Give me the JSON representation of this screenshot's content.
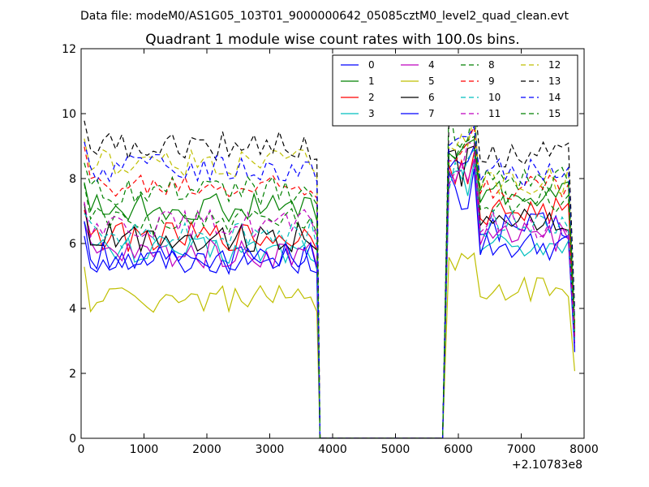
{
  "chart_data": {
    "type": "line",
    "suptitle": "Data file: modeM0/AS1G05_103T01_9000000642_05085cztM0_level2_quad_clean.evt",
    "title": "Quadrant 1 module wise count rates with 100.0s bins.",
    "xlabel": "",
    "ylabel": "",
    "xlim": [
      0,
      8000
    ],
    "ylim": [
      0,
      12
    ],
    "x_offset_label": "+2.10783e8",
    "x_ticks": [
      0,
      1000,
      2000,
      3000,
      4000,
      5000,
      6000,
      7000,
      8000
    ],
    "x_tick_labels": [
      "0",
      "1000",
      "2000",
      "3000",
      "4000",
      "5000",
      "6000",
      "7000",
      "8000"
    ],
    "y_ticks": [
      0,
      2,
      4,
      6,
      8,
      10,
      12
    ],
    "y_tick_labels": [
      "0",
      "2",
      "4",
      "6",
      "8",
      "10",
      "12"
    ],
    "legend_position": "top-right",
    "legend_columns": 4,
    "x_segments": [
      {
        "start": 50,
        "step": 100,
        "count": 38
      },
      {
        "points": [
          3800,
          5750
        ]
      },
      {
        "start": 5850,
        "step": 100,
        "count": 21
      }
    ],
    "series": [
      {
        "name": "0",
        "color": "#0000ff",
        "dash": "solid",
        "level_a": 5.5,
        "level_b": 6.5,
        "peak": 9.0
      },
      {
        "name": "1",
        "color": "#008000",
        "dash": "solid",
        "level_a": 7.1,
        "level_b": 7.5,
        "peak": 9.2
      },
      {
        "name": "2",
        "color": "#ff0000",
        "dash": "solid",
        "level_a": 6.2,
        "level_b": 7.0,
        "peak": 8.8
      },
      {
        "name": "3",
        "color": "#00bfbf",
        "dash": "solid",
        "level_a": 5.8,
        "level_b": 6.0,
        "peak": 8.5
      },
      {
        "name": "4",
        "color": "#bf00bf",
        "dash": "solid",
        "level_a": 5.7,
        "level_b": 6.2,
        "peak": 8.6
      },
      {
        "name": "5",
        "color": "#bfbf00",
        "dash": "solid",
        "level_a": 4.3,
        "level_b": 4.6,
        "peak": 5.7
      },
      {
        "name": "6",
        "color": "#000000",
        "dash": "solid",
        "level_a": 6.2,
        "level_b": 6.8,
        "peak": 9.0
      },
      {
        "name": "7",
        "color": "#0000ff",
        "dash": "solid",
        "level_a": 5.6,
        "level_b": 5.9,
        "peak": 8.3
      },
      {
        "name": "8",
        "color": "#008000",
        "dash": "dashed",
        "level_a": 6.7,
        "level_b": 7.3,
        "peak": 10.4
      },
      {
        "name": "9",
        "color": "#ff0000",
        "dash": "dashed",
        "level_a": 7.8,
        "level_b": 7.8,
        "peak": 9.6
      },
      {
        "name": "10",
        "color": "#00bfbf",
        "dash": "dashed",
        "level_a": 6.3,
        "level_b": 6.6,
        "peak": 8.9
      },
      {
        "name": "11",
        "color": "#bf00bf",
        "dash": "dashed",
        "level_a": 6.6,
        "level_b": 6.6,
        "peak": 9.1
      },
      {
        "name": "12",
        "color": "#bfbf00",
        "dash": "dashed",
        "level_a": 8.5,
        "level_b": 7.9,
        "peak": 10.0
      },
      {
        "name": "13",
        "color": "#000000",
        "dash": "dashed",
        "level_a": 9.0,
        "level_b": 8.8,
        "peak": 10.6
      },
      {
        "name": "14",
        "color": "#0000ff",
        "dash": "dashed",
        "level_a": 8.3,
        "level_b": 8.2,
        "peak": 9.6
      },
      {
        "name": "15",
        "color": "#008000",
        "dash": "dashed",
        "level_a": 7.6,
        "level_b": 7.9,
        "peak": 9.3
      }
    ]
  }
}
